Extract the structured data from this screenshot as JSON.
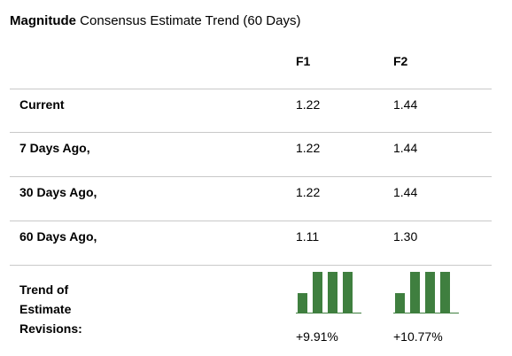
{
  "title": {
    "brand": "Magnitude",
    "rest": "Consensus Estimate Trend (60 Days)"
  },
  "columns": [
    "F1",
    "F2"
  ],
  "rows": [
    {
      "label": "Current",
      "f1": "1.22",
      "f2": "1.44"
    },
    {
      "label": "7 Days Ago,",
      "f1": "1.22",
      "f2": "1.44"
    },
    {
      "label": "30 Days Ago,",
      "f1": "1.22",
      "f2": "1.44"
    },
    {
      "label": "60 Days Ago,",
      "f1": "1.11",
      "f2": "1.30"
    }
  ],
  "trend": {
    "label_lines": [
      "Trend of",
      "Estimate",
      "Revisions:"
    ],
    "f1_change": "+9.91%",
    "f2_change": "+10.77%",
    "f1_values": [
      1.11,
      1.22,
      1.22,
      1.22
    ],
    "f2_values": [
      1.3,
      1.44,
      1.44,
      1.44
    ],
    "bar_color": "#3f7f3f",
    "baseline_color": "#3f7f3f"
  }
}
